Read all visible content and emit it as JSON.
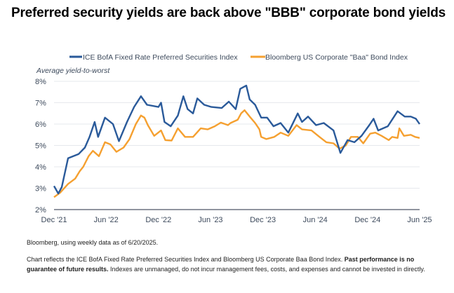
{
  "title": "Preferred security yields are back above \"BBB\" corporate bond yields",
  "chart_data": {
    "type": "line",
    "ylabel": "Average yield-to-worst",
    "ylim": [
      2,
      8
    ],
    "yticks": [
      "2%",
      "3%",
      "4%",
      "5%",
      "6%",
      "7%",
      "8%"
    ],
    "ytick_values": [
      2,
      3,
      4,
      5,
      6,
      7,
      8
    ],
    "xlim": [
      "2021-12-01",
      "2025-06-01"
    ],
    "xticks": [
      {
        "label": "Dec '21",
        "date": "2021-12-01"
      },
      {
        "label": "Jun '22",
        "date": "2022-06-01"
      },
      {
        "label": "Dec '22",
        "date": "2022-12-01"
      },
      {
        "label": "Jun '23",
        "date": "2023-06-01"
      },
      {
        "label": "Dec '23",
        "date": "2023-12-01"
      },
      {
        "label": "Jun '24",
        "date": "2024-06-01"
      },
      {
        "label": "Dec '24",
        "date": "2024-12-01"
      },
      {
        "label": "Jun '25",
        "date": "2025-06-01"
      }
    ],
    "grid": true,
    "legend_position": "top",
    "series": [
      {
        "name": "ICE BofA Fixed Rate Preferred Securities Index",
        "color": "#2a5a9a",
        "x": [
          "2021-12-01",
          "2021-12-16",
          "2021-12-28",
          "2022-01-19",
          "2022-02-25",
          "2022-03-19",
          "2022-04-04",
          "2022-04-22",
          "2022-05-04",
          "2022-05-28",
          "2022-06-25",
          "2022-07-16",
          "2022-08-13",
          "2022-09-07",
          "2022-10-01",
          "2022-10-22",
          "2022-12-01",
          "2022-12-10",
          "2022-12-22",
          "2023-01-13",
          "2023-02-07",
          "2023-02-26",
          "2023-03-13",
          "2023-04-01",
          "2023-04-16",
          "2023-05-10",
          "2023-06-04",
          "2023-07-10",
          "2023-08-04",
          "2023-08-28",
          "2023-09-13",
          "2023-10-04",
          "2023-10-16",
          "2023-11-04",
          "2023-11-25",
          "2023-12-16",
          "2024-01-07",
          "2024-02-01",
          "2024-02-28",
          "2024-04-01",
          "2024-04-16",
          "2024-05-07",
          "2024-06-04",
          "2024-07-01",
          "2024-08-04",
          "2024-08-28",
          "2024-09-22",
          "2024-10-16",
          "2024-11-10",
          "2024-12-07",
          "2024-12-22",
          "2025-01-07",
          "2025-02-10",
          "2025-03-16",
          "2025-04-10",
          "2025-05-01",
          "2025-05-19",
          "2025-06-01"
        ],
        "values": [
          3.1,
          2.75,
          3.05,
          4.4,
          4.6,
          4.9,
          5.4,
          6.1,
          5.4,
          6.3,
          6.0,
          5.2,
          6.1,
          6.8,
          7.3,
          6.9,
          6.8,
          7.0,
          6.1,
          5.9,
          6.4,
          7.3,
          6.7,
          6.5,
          7.2,
          6.9,
          6.8,
          6.75,
          7.05,
          6.7,
          7.65,
          7.8,
          7.15,
          6.9,
          6.3,
          6.3,
          5.9,
          6.05,
          5.6,
          6.5,
          6.1,
          6.35,
          5.95,
          6.05,
          5.7,
          4.65,
          5.25,
          5.15,
          5.45,
          5.95,
          6.25,
          5.7,
          5.9,
          6.6,
          6.35,
          6.35,
          6.25,
          6.0
        ]
      },
      {
        "name": "Bloomberg US Corporate \"Baa\" Bond Index",
        "color": "#f5a030",
        "x": [
          "2021-12-01",
          "2021-12-23",
          "2022-01-19",
          "2022-02-13",
          "2022-03-01",
          "2022-03-13",
          "2022-04-01",
          "2022-04-16",
          "2022-05-07",
          "2022-05-28",
          "2022-06-16",
          "2022-07-07",
          "2022-08-01",
          "2022-08-22",
          "2022-09-13",
          "2022-10-01",
          "2022-10-13",
          "2022-10-25",
          "2022-11-16",
          "2022-12-10",
          "2022-12-25",
          "2023-01-16",
          "2023-02-07",
          "2023-03-04",
          "2023-04-01",
          "2023-04-28",
          "2023-05-22",
          "2023-06-16",
          "2023-07-07",
          "2023-08-01",
          "2023-08-10",
          "2023-09-04",
          "2023-09-16",
          "2023-09-28",
          "2023-10-16",
          "2023-11-04",
          "2023-11-19",
          "2023-11-25",
          "2023-12-13",
          "2024-01-10",
          "2024-02-01",
          "2024-02-28",
          "2024-03-28",
          "2024-04-16",
          "2024-05-19",
          "2024-06-16",
          "2024-07-10",
          "2024-08-04",
          "2024-08-25",
          "2024-09-16",
          "2024-10-04",
          "2024-10-28",
          "2024-11-16",
          "2024-12-10",
          "2024-12-28",
          "2025-01-19",
          "2025-02-13",
          "2025-02-25",
          "2025-03-16",
          "2025-03-22",
          "2025-04-07",
          "2025-05-01",
          "2025-05-16",
          "2025-06-01"
        ],
        "values": [
          2.58,
          2.8,
          3.2,
          3.45,
          3.8,
          4.0,
          4.5,
          4.75,
          4.5,
          5.15,
          5.05,
          4.7,
          4.9,
          5.3,
          6.0,
          6.4,
          6.3,
          5.95,
          5.45,
          5.7,
          5.25,
          5.23,
          5.8,
          5.4,
          5.4,
          5.8,
          5.75,
          5.9,
          6.07,
          5.95,
          6.05,
          6.2,
          6.5,
          6.65,
          6.35,
          6.05,
          5.75,
          5.4,
          5.3,
          5.4,
          5.6,
          5.45,
          5.95,
          5.75,
          5.7,
          5.4,
          5.15,
          5.1,
          4.85,
          5.0,
          5.4,
          5.4,
          5.1,
          5.55,
          5.6,
          5.45,
          5.25,
          5.4,
          5.35,
          5.8,
          5.45,
          5.5,
          5.4,
          5.35
        ]
      }
    ]
  },
  "footnotes": {
    "source": "Bloomberg, using weekly data as of 6/20/2025.",
    "note_pre": "Chart reflects the ICE BofA Fixed Rate Preferred Securities Index and Bloomberg US Corporate Baa Bond Index. ",
    "note_bold": "Past performance is no guarantee of future results.",
    "note_post": " Indexes are unmanaged, do not incur management fees, costs, and expenses and cannot be invested in directly."
  }
}
